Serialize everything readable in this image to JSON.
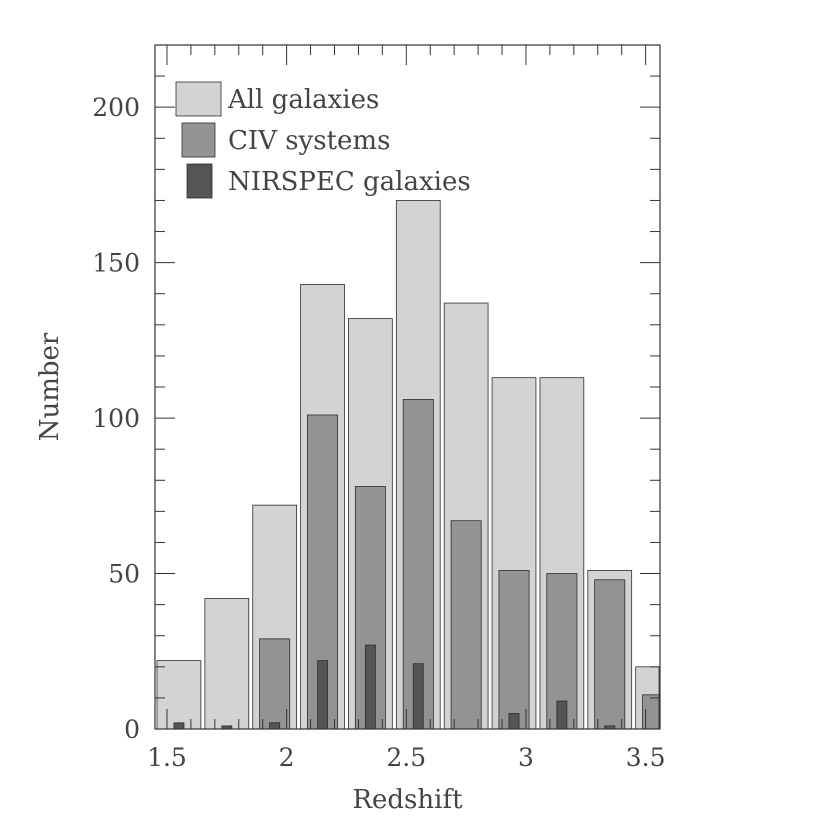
{
  "chart_data": {
    "type": "bar",
    "xlabel": "Redshift",
    "ylabel": "Number",
    "xlim": [
      1.45,
      3.56
    ],
    "ylim": [
      0,
      220
    ],
    "x_ticks": [
      1.5,
      2,
      2.5,
      3,
      3.5
    ],
    "x_tick_labels": [
      "1.5",
      "2",
      "2.5",
      "3",
      "3.5"
    ],
    "y_ticks": [
      0,
      50,
      100,
      150,
      200
    ],
    "y_tick_labels": [
      "0",
      "50",
      "100",
      "150",
      "200"
    ],
    "bin_width": 0.2,
    "categories": [
      1.55,
      1.75,
      1.95,
      2.15,
      2.35,
      2.55,
      2.75,
      2.95,
      3.15,
      3.35,
      3.55
    ],
    "series": [
      {
        "name": "All galaxies",
        "color": "#d3d3d3",
        "values": [
          22,
          42,
          72,
          143,
          132,
          170,
          137,
          113,
          113,
          51,
          20
        ]
      },
      {
        "name": "CIV systems",
        "color": "#939393",
        "values": [
          0,
          0,
          29,
          101,
          78,
          106,
          67,
          51,
          50,
          48,
          11
        ]
      },
      {
        "name": "NIRSPEC galaxies",
        "color": "#555555",
        "values": [
          2,
          1,
          2,
          22,
          27,
          21,
          0,
          5,
          9,
          1,
          0
        ]
      }
    ],
    "legend_position": "top-left",
    "grid": false
  }
}
